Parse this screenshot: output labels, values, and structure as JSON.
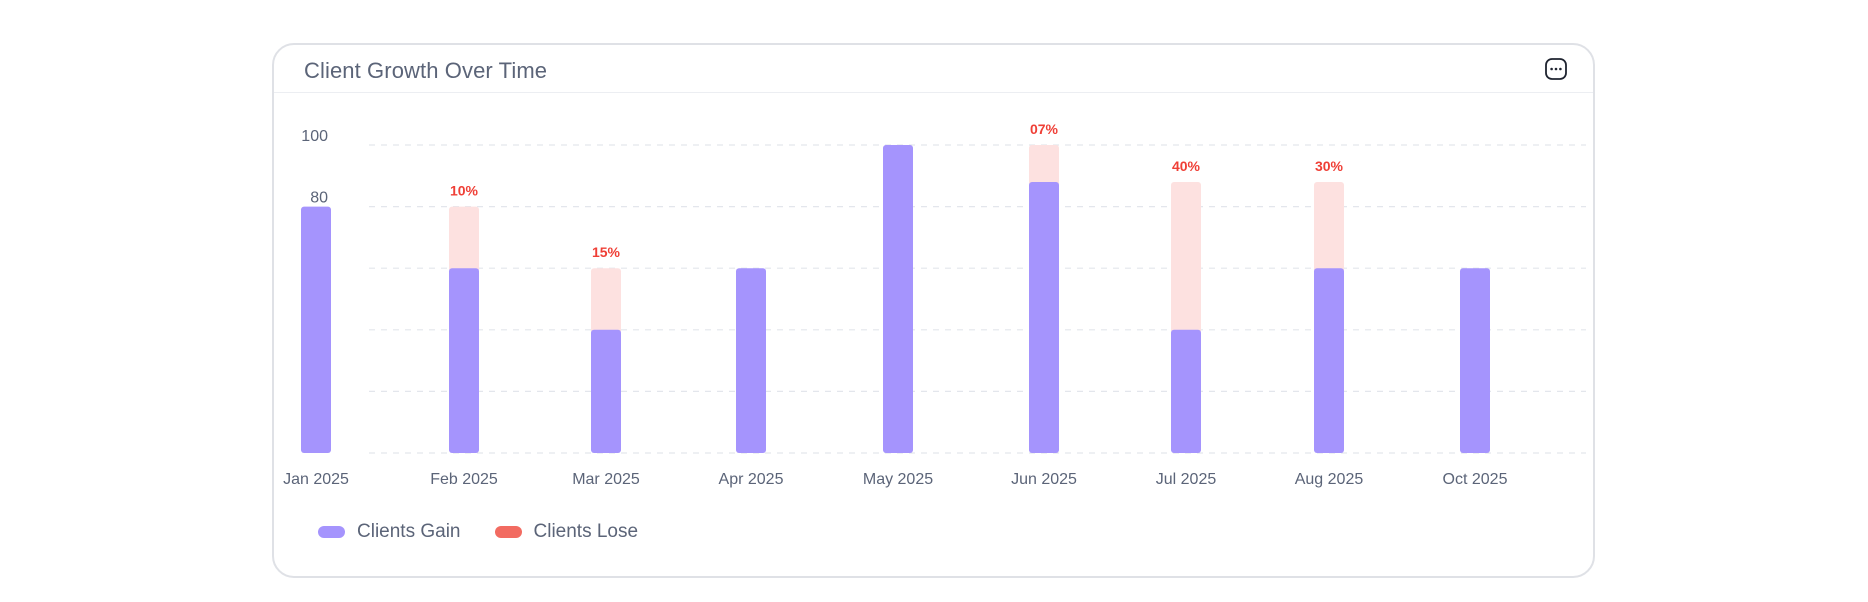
{
  "card": {
    "title": "Client Growth Over Time"
  },
  "icons": {
    "menu": "more-horizontal-icon"
  },
  "colors": {
    "gain": "#a594fd",
    "lose_bar": "#fde1e0",
    "lose_legend": "#f26b61",
    "lose_label": "#ef3f36",
    "text": "#5b6478",
    "grid": "#e3e6ec"
  },
  "legend": [
    {
      "label": "Clients Gain",
      "color": "#a594fd"
    },
    {
      "label": "Clients Lose",
      "color": "#f26b61"
    }
  ],
  "chart_data": {
    "type": "bar",
    "stacked": true,
    "title": "Client Growth Over Time",
    "xlabel": "",
    "ylabel": "",
    "ylim": [
      0,
      100
    ],
    "yticks": [
      "0",
      "20",
      "40",
      "60",
      "80",
      "100"
    ],
    "grid": true,
    "legend_position": "bottom-left",
    "categories": [
      "Jan 2025",
      "Feb 2025",
      "Mar 2025",
      "Apr 2025",
      "May 2025",
      "Jun 2025",
      "Jul 2025",
      "Aug 2025",
      "Oct 2025"
    ],
    "series": [
      {
        "name": "Clients Gain",
        "values": [
          80,
          60,
          40,
          60,
          100,
          88,
          40,
          60,
          60
        ]
      },
      {
        "name": "Clients Lose",
        "values": [
          0,
          20,
          20,
          0,
          0,
          12,
          48,
          28,
          0
        ]
      }
    ],
    "annotations": [
      "",
      "10%",
      "15%",
      "",
      "",
      "07%",
      "40%",
      "30%",
      ""
    ]
  }
}
